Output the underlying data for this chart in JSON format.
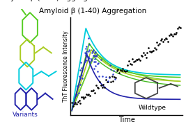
{
  "title": "Amyloid β (1-40) Aggregation",
  "xlabel": "Time",
  "ylabel": "ThT Fluorescence Intensity",
  "variants_label": "Variants",
  "wildtype_label": "Wildtype",
  "variant_colors": [
    "#55cc22",
    "#aacc22",
    "#00ccdd",
    "#2222aa",
    "#44bb22"
  ],
  "wildtype_color": "#111111",
  "scatter_color": "#2233cc",
  "fig_width": 2.67,
  "fig_height": 1.89,
  "dpi": 100
}
